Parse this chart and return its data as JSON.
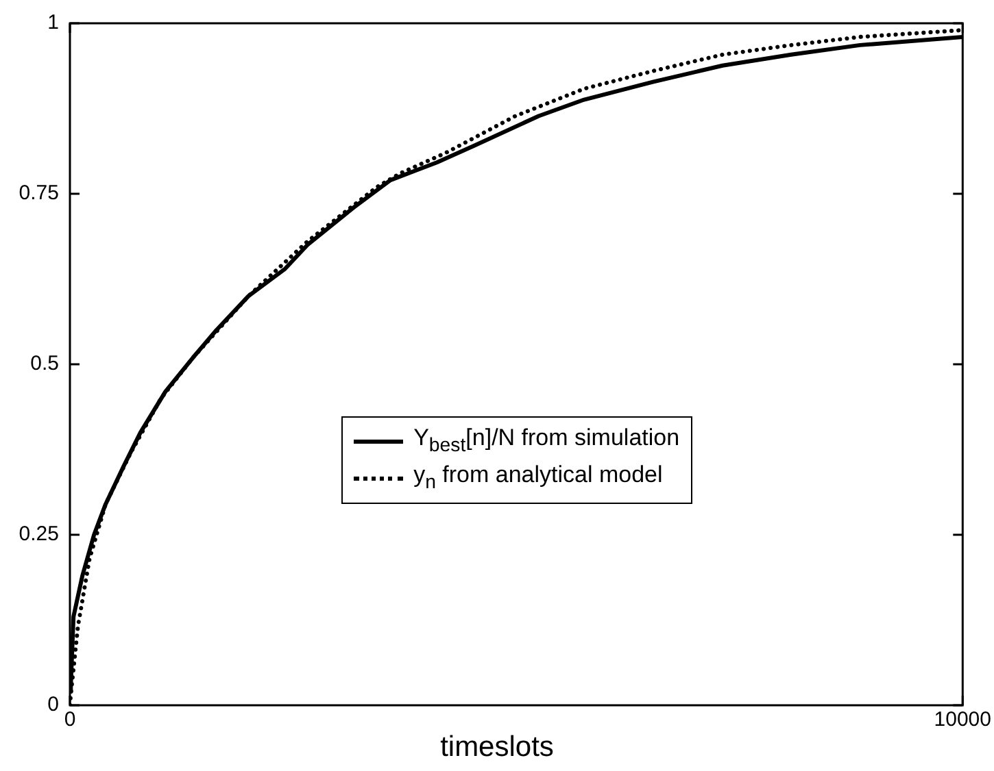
{
  "chart_data": {
    "type": "line",
    "xlabel": "timeslots",
    "xlim": [
      0,
      10000
    ],
    "xticks": [
      0,
      10000
    ],
    "ylim": [
      0,
      1
    ],
    "yticks": [
      0,
      0.25,
      0.5,
      0.75,
      1
    ],
    "grid": false,
    "legend": "center",
    "marker": "none",
    "series": [
      {
        "name": "Y$_{best}$[n]/N from simulation",
        "color": "#000000",
        "line_style": "solid",
        "x": [
          0,
          10,
          40,
          140,
          270,
          400,
          600,
          790,
          1070,
          1380,
          1640,
          2000,
          2410,
          2660,
          3180,
          3590,
          4110,
          4520,
          5250,
          5760,
          6530,
          7310,
          8080,
          8850,
          10000
        ],
        "values": [
          0.02,
          0.03,
          0.13,
          0.19,
          0.25,
          0.295,
          0.35,
          0.4,
          0.46,
          0.51,
          0.55,
          0.6,
          0.64,
          0.675,
          0.73,
          0.77,
          0.796,
          0.82,
          0.864,
          0.888,
          0.914,
          0.938,
          0.954,
          0.968,
          0.98
        ]
      },
      {
        "name": "y$_{n}$ from analytical model",
        "color": "#000000",
        "line_style": "dotted",
        "x": [
          0,
          10,
          90,
          220,
          400,
          680,
          1020,
          1380,
          2000,
          2660,
          3440,
          3700,
          4210,
          4990,
          5760,
          6530,
          7310,
          8080,
          8850,
          10000
        ],
        "values": [
          0,
          0.016,
          0.116,
          0.215,
          0.295,
          0.37,
          0.45,
          0.51,
          0.6,
          0.68,
          0.76,
          0.78,
          0.81,
          0.864,
          0.904,
          0.93,
          0.954,
          0.968,
          0.98,
          0.99
        ]
      }
    ]
  }
}
